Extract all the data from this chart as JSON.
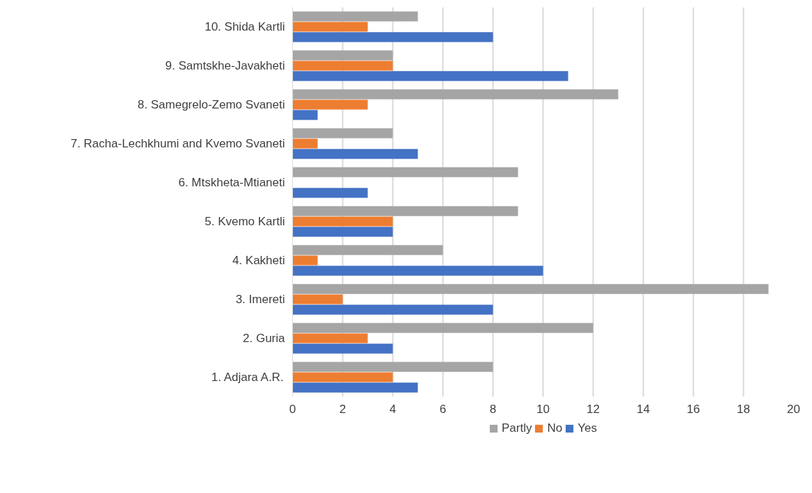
{
  "chart_data": {
    "type": "bar",
    "orientation": "horizontal",
    "categories": [
      "10. Shida Kartli",
      "9. Samtskhe-Javakheti",
      "8. Samegrelo-Zemo Svaneti",
      "7. Racha-Lechkhumi and Kvemo Svaneti",
      "6. Mtskheta-Mtianeti",
      "5. Kvemo Kartli",
      "4. Kakheti",
      "3. Imereti",
      "2. Guria",
      "1. Adjara A.R."
    ],
    "series": [
      {
        "name": "Partly",
        "color": "#a5a5a5",
        "values": [
          5,
          4,
          13,
          4,
          9,
          9,
          6,
          19,
          12,
          8
        ]
      },
      {
        "name": "No",
        "color": "#ed7d31",
        "values": [
          3,
          4,
          3,
          1,
          0,
          4,
          1,
          2,
          3,
          4
        ]
      },
      {
        "name": "Yes",
        "color": "#4472c4",
        "values": [
          8,
          11,
          1,
          5,
          3,
          4,
          10,
          8,
          4,
          5
        ]
      }
    ],
    "xlim": [
      0,
      20
    ],
    "xticks": [
      0,
      2,
      4,
      6,
      8,
      10,
      12,
      14,
      16,
      18,
      20
    ],
    "grid": "x",
    "legend": "bottom"
  }
}
